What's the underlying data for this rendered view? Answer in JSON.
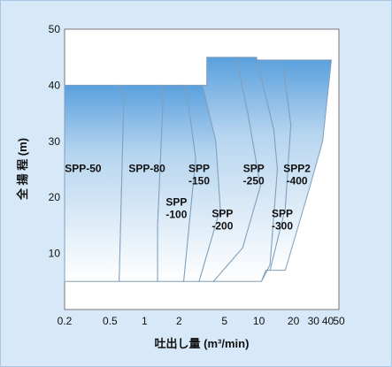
{
  "chart_data": {
    "type": "area",
    "title": "",
    "xlabel": "吐出し量 (m³/min)",
    "ylabel": "全 揚 程 (m)",
    "x_scale": "log",
    "xlim": [
      0.2,
      50
    ],
    "ylim": [
      0,
      50
    ],
    "x_ticks": [
      0.2,
      0.5,
      1,
      2,
      5,
      10,
      20,
      30,
      40,
      50
    ],
    "x_tick_labels": [
      "0.2",
      "0.5",
      "1",
      "2",
      "5",
      "10",
      "20",
      "30",
      "40",
      "50"
    ],
    "y_ticks": [
      10,
      20,
      30,
      40,
      50
    ],
    "y_tick_labels": [
      "10",
      "20",
      "30",
      "40",
      "50"
    ],
    "grid": false,
    "regions": [
      {
        "label": [
          "SPP-50"
        ],
        "label_at": [
          0.29,
          24.5
        ],
        "boundary": [
          [
            0.2,
            5
          ],
          [
            0.2,
            40
          ],
          [
            0.6,
            40
          ],
          [
            0.66,
            38
          ],
          [
            0.6,
            5
          ]
        ]
      },
      {
        "label": [
          "SPP-80"
        ],
        "label_at": [
          1.05,
          24.5
        ],
        "boundary": [
          [
            0.6,
            5
          ],
          [
            0.66,
            38
          ],
          [
            0.6,
            40
          ],
          [
            1.4,
            40
          ],
          [
            1.45,
            37
          ],
          [
            1.3,
            15
          ],
          [
            1.3,
            5
          ]
        ]
      },
      {
        "label": [
          "SPP",
          "-100"
        ],
        "label_at": [
          1.9,
          18.5
        ],
        "boundary": [
          [
            1.3,
            5
          ],
          [
            1.3,
            15
          ],
          [
            1.45,
            37
          ],
          [
            1.4,
            40
          ],
          [
            2.2,
            40
          ],
          [
            2.4,
            37
          ],
          [
            2.8,
            27
          ],
          [
            2.2,
            5
          ]
        ]
      },
      {
        "label": [
          "SPP",
          "-150"
        ],
        "label_at": [
          3.0,
          24.5
        ],
        "boundary": [
          [
            2.2,
            5
          ],
          [
            2.8,
            27
          ],
          [
            2.4,
            37
          ],
          [
            2.2,
            40
          ],
          [
            3.2,
            40
          ],
          [
            4.2,
            30
          ],
          [
            4.6,
            18
          ],
          [
            3.0,
            5
          ]
        ]
      },
      {
        "label": [
          "SPP",
          "-200"
        ],
        "label_at": [
          4.8,
          16.5
        ],
        "boundary": [
          [
            3.0,
            5
          ],
          [
            4.6,
            18
          ],
          [
            4.2,
            30
          ],
          [
            3.2,
            40
          ],
          [
            3.5,
            40
          ],
          [
            3.5,
            45
          ],
          [
            6.3,
            45
          ],
          [
            8.0,
            35
          ],
          [
            10.3,
            22
          ],
          [
            7.2,
            11
          ],
          [
            4.0,
            5
          ]
        ]
      },
      {
        "label": [
          "SPP",
          "-250"
        ],
        "label_at": [
          9.0,
          24.5
        ],
        "boundary": [
          [
            4.0,
            5
          ],
          [
            7.2,
            11
          ],
          [
            10.3,
            22
          ],
          [
            8.0,
            35
          ],
          [
            6.3,
            45
          ],
          [
            9.5,
            45
          ],
          [
            13.5,
            32
          ],
          [
            14.5,
            25
          ],
          [
            12.5,
            8
          ],
          [
            10.5,
            5
          ]
        ]
      },
      {
        "label": [
          "SPP",
          "-300"
        ],
        "label_at": [
          16.0,
          16.5
        ],
        "boundary": [
          [
            10.5,
            5
          ],
          [
            12.5,
            8
          ],
          [
            14.5,
            25
          ],
          [
            13.5,
            32
          ],
          [
            9.5,
            45
          ],
          [
            9.5,
            44.5
          ],
          [
            16.0,
            44.5
          ],
          [
            19.0,
            33
          ],
          [
            17.0,
            18
          ],
          [
            12.5,
            7
          ],
          [
            11.5,
            7
          ]
        ]
      },
      {
        "label": [
          "SPP2",
          "-400"
        ],
        "label_at": [
          21.5,
          24.5
        ],
        "boundary": [
          [
            12.5,
            7
          ],
          [
            17.0,
            18
          ],
          [
            19.0,
            33
          ],
          [
            16.0,
            44.5
          ],
          [
            43.0,
            44.5
          ],
          [
            36.0,
            30
          ],
          [
            28.0,
            22
          ],
          [
            17.0,
            7
          ]
        ]
      }
    ]
  }
}
